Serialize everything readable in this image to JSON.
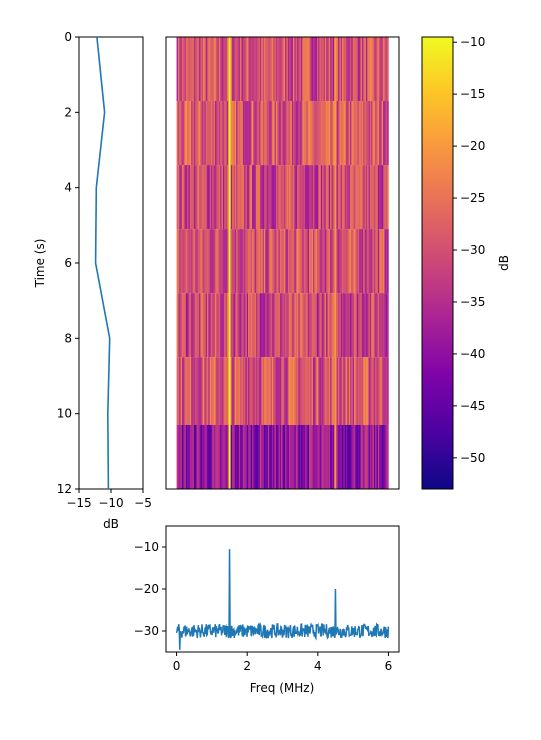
{
  "chart_data": [
    {
      "type": "line",
      "panel": "time-profile",
      "xlabel": "dB",
      "ylabel": "Time (s)",
      "xlim": [
        -15,
        -5
      ],
      "ylim": [
        12,
        0
      ],
      "xticks": [
        -15,
        -10,
        -5
      ],
      "xtick_labels": [
        "−15",
        "−10",
        "−5"
      ],
      "yticks": [
        0,
        2,
        4,
        6,
        8,
        10,
        12
      ],
      "ytick_labels": [
        "0",
        "2",
        "4",
        "6",
        "8",
        "10",
        "12"
      ],
      "series": [
        {
          "color": "#1f77b4",
          "points": [
            [
              -12.2,
              0
            ],
            [
              -11.0,
              2.0
            ],
            [
              -12.3,
              4.0
            ],
            [
              -12.4,
              6.0
            ],
            [
              -10.2,
              8.0
            ],
            [
              -10.5,
              10.0
            ],
            [
              -10.4,
              12.0
            ]
          ]
        }
      ],
      "grid": false
    },
    {
      "type": "heatmap",
      "panel": "spectrogram",
      "colormap": "plasma",
      "xlim": [
        -0.3,
        6.3
      ],
      "ylim": [
        12,
        0
      ],
      "x_extent": [
        0,
        6
      ],
      "time_rows": [
        {
          "t0": 0.0,
          "t1": 1.7,
          "level": -30
        },
        {
          "t0": 1.7,
          "t1": 3.4,
          "level": -29
        },
        {
          "t0": 3.4,
          "t1": 5.1,
          "level": -31
        },
        {
          "t0": 5.1,
          "t1": 6.8,
          "level": -30
        },
        {
          "t0": 6.8,
          "t1": 8.5,
          "level": -31
        },
        {
          "t0": 8.5,
          "t1": 10.3,
          "level": -29
        },
        {
          "t0": 10.3,
          "t1": 12.0,
          "level": -40
        }
      ],
      "tones": [
        {
          "freq": 1.5,
          "value": -10
        },
        {
          "freq": 4.5,
          "value": -20
        }
      ],
      "grid": false
    },
    {
      "type": "colorbar",
      "panel": "colorbar",
      "label": "dB",
      "range": [
        -53,
        -9.5
      ],
      "ticks": [
        -10,
        -15,
        -20,
        -25,
        -30,
        -35,
        -40,
        -45,
        -50
      ],
      "tick_labels": [
        "−10",
        "−15",
        "−20",
        "−25",
        "−30",
        "−35",
        "−40",
        "−45",
        "−50"
      ]
    },
    {
      "type": "line",
      "panel": "spectrum",
      "xlabel": "Freq (MHz)",
      "ylabel": "",
      "xlim": [
        -0.3,
        6.3
      ],
      "ylim": [
        -35,
        -5
      ],
      "xticks": [
        0,
        2,
        4,
        6
      ],
      "xtick_labels": [
        "0",
        "2",
        "4",
        "6"
      ],
      "yticks": [
        -10,
        -20,
        -30
      ],
      "ytick_labels": [
        "−10",
        "−20",
        "−30"
      ],
      "baseline": -30,
      "peaks": [
        {
          "freq": 1.5,
          "value": -10.5
        },
        {
          "freq": 4.5,
          "value": -20
        }
      ],
      "color": "#1f77b4",
      "grid": false
    }
  ]
}
